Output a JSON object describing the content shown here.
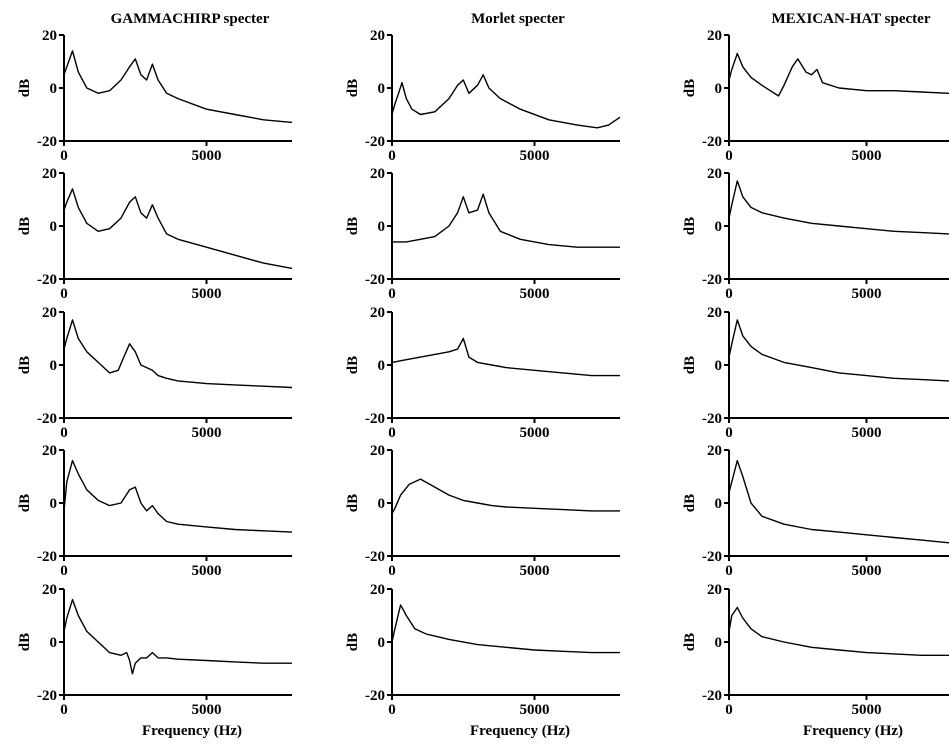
{
  "chart_data": {
    "type": "line",
    "layout": "grid",
    "rows": 5,
    "columns": 3,
    "column_titles": [
      "GAMMACHIRP specter",
      "Morlet specter",
      "MEXICAN-HAT specter"
    ],
    "xlabel": "Frequency (Hz)",
    "ylabel": "dB",
    "xlim": [
      0,
      8000
    ],
    "ylim": [
      -20,
      20
    ],
    "xticks": [
      0,
      5000
    ],
    "yticks": [
      -20,
      0,
      20
    ],
    "grid": false,
    "legend": "none",
    "line_color": "#000000",
    "panels": [
      {
        "row": 1,
        "column": 1,
        "x": [
          0,
          100,
          300,
          500,
          800,
          1200,
          1600,
          2000,
          2300,
          2500,
          2700,
          2900,
          3100,
          3300,
          3600,
          4000,
          5000,
          6000,
          7000,
          8000
        ],
        "y": [
          5,
          8,
          14,
          6,
          0,
          -2,
          -1,
          3,
          8,
          11,
          5,
          3,
          9,
          3,
          -2,
          -4,
          -8,
          -10,
          -12,
          -13
        ]
      },
      {
        "row": 1,
        "column": 2,
        "x": [
          0,
          100,
          200,
          350,
          500,
          700,
          1000,
          1500,
          2000,
          2300,
          2500,
          2700,
          3000,
          3200,
          3400,
          3800,
          4500,
          5500,
          6500,
          7200,
          7600,
          8000
        ],
        "y": [
          -10,
          -6,
          -3,
          2,
          -4,
          -8,
          -10,
          -9,
          -4,
          1,
          3,
          -2,
          1,
          5,
          0,
          -4,
          -8,
          -12,
          -14,
          -15,
          -14,
          -11
        ]
      },
      {
        "row": 1,
        "column": 3,
        "x": [
          0,
          100,
          300,
          500,
          800,
          1200,
          1500,
          1800,
          2000,
          2300,
          2500,
          2800,
          3000,
          3200,
          3400,
          4000,
          5000,
          6000,
          7000,
          8000
        ],
        "y": [
          3,
          7,
          13,
          8,
          4,
          1,
          -1,
          -3,
          1,
          8,
          11,
          6,
          5,
          7,
          2,
          0,
          -1,
          -1,
          -1.5,
          -2
        ]
      },
      {
        "row": 2,
        "column": 1,
        "x": [
          0,
          100,
          300,
          500,
          800,
          1200,
          1600,
          2000,
          2300,
          2500,
          2700,
          2900,
          3100,
          3300,
          3600,
          4000,
          5000,
          6000,
          7000,
          8000
        ],
        "y": [
          6,
          9,
          14,
          7,
          1,
          -2,
          -1,
          3,
          9,
          11,
          5,
          3,
          8,
          3,
          -3,
          -5,
          -8,
          -11,
          -14,
          -16
        ]
      },
      {
        "row": 2,
        "column": 2,
        "x": [
          0,
          500,
          1000,
          1500,
          2000,
          2300,
          2500,
          2700,
          3000,
          3200,
          3400,
          3800,
          4500,
          5500,
          6500,
          7500,
          8000
        ],
        "y": [
          -6,
          -6,
          -5,
          -4,
          0,
          5,
          11,
          5,
          6,
          12,
          5,
          -2,
          -5,
          -7,
          -8,
          -8,
          -8
        ]
      },
      {
        "row": 2,
        "column": 3,
        "x": [
          0,
          100,
          300,
          500,
          800,
          1200,
          2000,
          3000,
          4000,
          5000,
          6000,
          7000,
          8000
        ],
        "y": [
          3,
          8,
          17,
          11,
          7,
          5,
          3,
          1,
          0,
          -1,
          -2,
          -2.5,
          -3
        ]
      },
      {
        "row": 3,
        "column": 1,
        "x": [
          0,
          100,
          300,
          500,
          800,
          1200,
          1600,
          1900,
          2100,
          2300,
          2500,
          2700,
          2900,
          3100,
          3300,
          3600,
          4000,
          5000,
          6000,
          7000,
          8000
        ],
        "y": [
          6,
          10,
          17,
          10,
          5,
          1,
          -3,
          -2,
          3,
          8,
          5,
          0,
          -1,
          -2,
          -4,
          -5,
          -6,
          -7,
          -7.5,
          -8,
          -8.5
        ]
      },
      {
        "row": 3,
        "column": 2,
        "x": [
          0,
          500,
          1000,
          1500,
          2000,
          2300,
          2500,
          2700,
          3000,
          3500,
          4000,
          5000,
          6000,
          7000,
          8000
        ],
        "y": [
          1,
          2,
          3,
          4,
          5,
          6,
          10,
          3,
          1,
          0,
          -1,
          -2,
          -3,
          -4,
          -4
        ]
      },
      {
        "row": 3,
        "column": 3,
        "x": [
          0,
          100,
          300,
          500,
          800,
          1200,
          2000,
          3000,
          4000,
          5000,
          6000,
          7000,
          8000
        ],
        "y": [
          3,
          8,
          17,
          11,
          7,
          4,
          1,
          -1,
          -3,
          -4,
          -5,
          -5.5,
          -6
        ]
      },
      {
        "row": 4,
        "column": 1,
        "x": [
          0,
          100,
          300,
          500,
          800,
          1200,
          1600,
          2000,
          2300,
          2500,
          2700,
          2900,
          3100,
          3300,
          3600,
          4000,
          5000,
          6000,
          7000,
          8000
        ],
        "y": [
          -3,
          8,
          16,
          11,
          5,
          1,
          -1,
          0,
          5,
          6,
          0,
          -3,
          -1,
          -4,
          -7,
          -8,
          -9,
          -10,
          -10.5,
          -11
        ]
      },
      {
        "row": 4,
        "column": 2,
        "x": [
          0,
          100,
          300,
          600,
          1000,
          1500,
          2000,
          2500,
          3000,
          3500,
          4000,
          5000,
          6000,
          7000,
          8000
        ],
        "y": [
          -4,
          -2,
          3,
          7,
          9,
          6,
          3,
          1,
          0,
          -1,
          -1.5,
          -2,
          -2.5,
          -3,
          -3
        ]
      },
      {
        "row": 4,
        "column": 3,
        "x": [
          0,
          100,
          300,
          500,
          800,
          1200,
          2000,
          3000,
          4000,
          5000,
          6000,
          7000,
          8000
        ],
        "y": [
          4,
          8,
          16,
          10,
          0,
          -5,
          -8,
          -10,
          -11,
          -12,
          -13,
          -14,
          -15
        ]
      },
      {
        "row": 5,
        "column": 1,
        "x": [
          0,
          100,
          300,
          500,
          800,
          1200,
          1600,
          2000,
          2200,
          2300,
          2400,
          2500,
          2700,
          2900,
          3100,
          3300,
          3600,
          4000,
          5000,
          6000,
          7000,
          8000
        ],
        "y": [
          4,
          9,
          16,
          10,
          4,
          0,
          -4,
          -5,
          -4,
          -7,
          -12,
          -8,
          -6,
          -6,
          -4,
          -6,
          -6,
          -6.5,
          -7,
          -7.5,
          -8,
          -8
        ]
      },
      {
        "row": 5,
        "column": 2,
        "x": [
          0,
          100,
          300,
          500,
          800,
          1200,
          2000,
          3000,
          4000,
          5000,
          6000,
          7000,
          8000
        ],
        "y": [
          0,
          5,
          14,
          10,
          5,
          3,
          1,
          -1,
          -2,
          -3,
          -3.5,
          -4,
          -4
        ]
      },
      {
        "row": 5,
        "column": 3,
        "x": [
          0,
          100,
          300,
          500,
          800,
          1200,
          2000,
          3000,
          4000,
          5000,
          6000,
          7000,
          8000
        ],
        "y": [
          4,
          10,
          13,
          9,
          5,
          2,
          0,
          -2,
          -3,
          -4,
          -4.5,
          -5,
          -5
        ]
      }
    ]
  }
}
